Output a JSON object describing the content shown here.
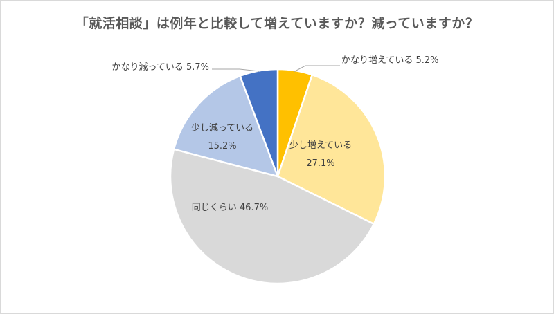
{
  "chart_data": {
    "type": "pie",
    "title": "「就活相談」は例年と比較して増えていますか？減っていますか？",
    "start_angle_deg": 0,
    "direction": "clockwise",
    "slices": [
      {
        "label": "かなり増えている",
        "value": 5.2,
        "value_text": "5.2%",
        "color": "#ffc000"
      },
      {
        "label": "少し増えている",
        "value": 27.1,
        "value_text": "27.1%",
        "color": "#ffe699"
      },
      {
        "label": "同じくらい",
        "value": 46.7,
        "value_text": "46.7%",
        "color": "#d9d9d9"
      },
      {
        "label": "少し減っている",
        "value": 15.2,
        "value_text": "15.2%",
        "color": "#b4c7e7"
      },
      {
        "label": "かなり減っている",
        "value": 5.7,
        "value_text": "5.7%",
        "color": "#4472c4"
      }
    ]
  }
}
